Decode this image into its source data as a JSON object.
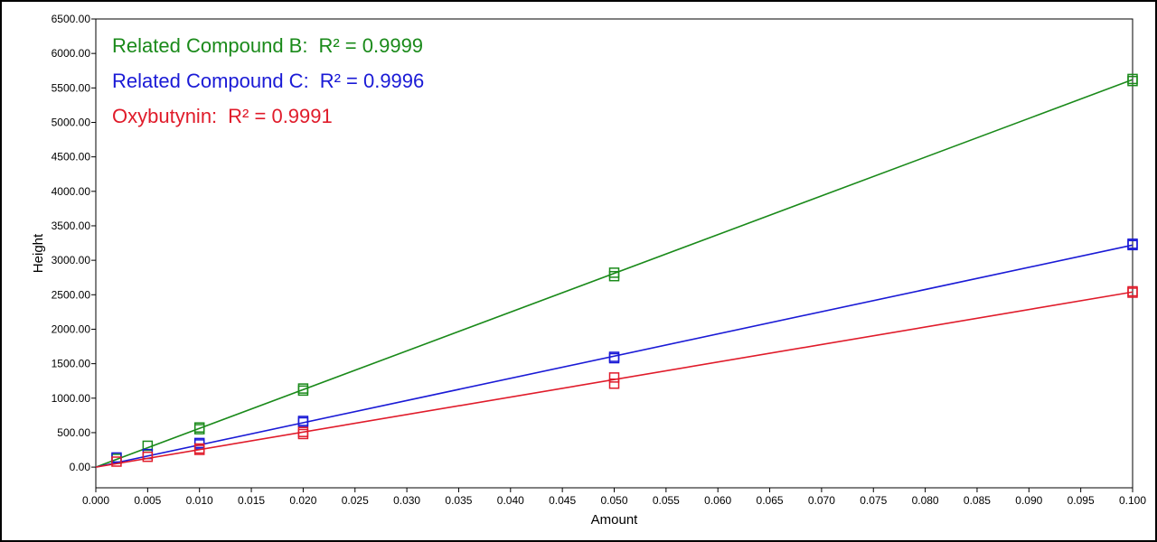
{
  "chart_data": {
    "type": "scatter",
    "title": "",
    "xlabel": "Amount",
    "ylabel": "Height",
    "xlim": [
      0.0,
      0.1
    ],
    "ylim": [
      -300,
      6500
    ],
    "x_ticks": [
      "0.000",
      "0.005",
      "0.010",
      "0.015",
      "0.020",
      "0.025",
      "0.030",
      "0.035",
      "0.040",
      "0.045",
      "0.050",
      "0.055",
      "0.060",
      "0.065",
      "0.070",
      "0.075",
      "0.080",
      "0.085",
      "0.090",
      "0.095",
      "0.100"
    ],
    "y_ticks": [
      "0.00",
      "500.00",
      "1000.00",
      "1500.00",
      "2000.00",
      "2500.00",
      "3000.00",
      "3500.00",
      "4000.00",
      "4500.00",
      "5000.00",
      "5500.00",
      "6000.00",
      "6500.00"
    ],
    "grid": false,
    "legend_position": "top-left",
    "fit": "linear",
    "legend": [
      {
        "label": "Related Compound B:",
        "r2": "R² = 0.9999",
        "color": "#1a8a1a"
      },
      {
        "label": "Related Compound C:",
        "r2": "R² = 0.9996",
        "color": "#1a1ad6"
      },
      {
        "label": "Oxybutynin:",
        "r2": "R² = 0.9991",
        "color": "#e01b2a"
      }
    ],
    "series": [
      {
        "color": "#1a8a1a",
        "line": [
          [
            0.0,
            0
          ],
          [
            0.1,
            5620
          ]
        ],
        "points": [
          [
            0.002,
            120
          ],
          [
            0.005,
            310
          ],
          [
            0.01,
            550
          ],
          [
            0.01,
            575
          ],
          [
            0.02,
            1110
          ],
          [
            0.02,
            1140
          ],
          [
            0.05,
            2770
          ],
          [
            0.05,
            2820
          ],
          [
            0.1,
            5600
          ],
          [
            0.1,
            5630
          ]
        ]
      },
      {
        "color": "#1a1ad6",
        "line": [
          [
            0.0,
            0
          ],
          [
            0.1,
            3220
          ]
        ],
        "points": [
          [
            0.002,
            140
          ],
          [
            0.005,
            190
          ],
          [
            0.01,
            330
          ],
          [
            0.01,
            350
          ],
          [
            0.02,
            650
          ],
          [
            0.02,
            670
          ],
          [
            0.05,
            1580
          ],
          [
            0.05,
            1600
          ],
          [
            0.1,
            3220
          ],
          [
            0.1,
            3240
          ]
        ]
      },
      {
        "color": "#e01b2a",
        "line": [
          [
            0.0,
            0
          ],
          [
            0.1,
            2540
          ]
        ],
        "points": [
          [
            0.002,
            80
          ],
          [
            0.005,
            150
          ],
          [
            0.01,
            250
          ],
          [
            0.01,
            270
          ],
          [
            0.02,
            480
          ],
          [
            0.02,
            510
          ],
          [
            0.05,
            1210
          ],
          [
            0.05,
            1300
          ],
          [
            0.1,
            2530
          ],
          [
            0.1,
            2550
          ]
        ]
      }
    ]
  }
}
